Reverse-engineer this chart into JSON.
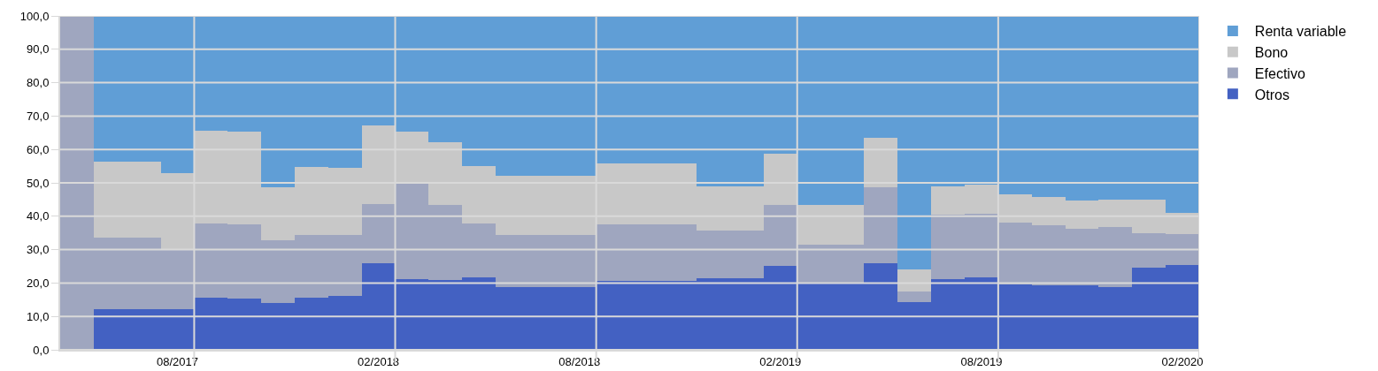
{
  "chart_data": {
    "type": "bar",
    "stacked": true,
    "categories": [
      null,
      null,
      null,
      "08/2017",
      null,
      null,
      null,
      null,
      null,
      "02/2018",
      null,
      null,
      null,
      null,
      null,
      "08/2018",
      null,
      null,
      null,
      null,
      null,
      "02/2019",
      null,
      null,
      null,
      null,
      null,
      "08/2019",
      null,
      null,
      null,
      null,
      null,
      "02/2020"
    ],
    "series": [
      {
        "name": "Otros",
        "color": "#4361c2",
        "values": [
          0,
          12.1,
          12.1,
          12.2,
          15.6,
          15.3,
          14.0,
          15.6,
          16.1,
          25.9,
          21.1,
          20.9,
          21.7,
          18.7,
          18.7,
          18.7,
          20.7,
          20.7,
          20.7,
          21.4,
          21.4,
          25.2,
          19.8,
          19.8,
          26.0,
          14.2,
          21.2,
          21.6,
          19.6,
          19.3,
          19.2,
          18.9,
          24.6,
          25.4
        ]
      },
      {
        "name": "Efectivo",
        "color": "#9fa6bf",
        "values": [
          100,
          21.5,
          21.5,
          18.0,
          22.3,
          22.2,
          18.9,
          18.9,
          18.4,
          17.8,
          28.6,
          22.5,
          16.0,
          15.8,
          15.8,
          15.8,
          16.8,
          16.8,
          16.8,
          14.3,
          14.3,
          18.3,
          11.7,
          11.7,
          22.8,
          3.2,
          19.2,
          19.1,
          18.4,
          18.0,
          17.0,
          17.9,
          10.4,
          9.2
        ]
      },
      {
        "name": "Bono",
        "color": "#c8c8c8",
        "values": [
          0,
          22.8,
          22.8,
          22.8,
          27.8,
          27.9,
          15.9,
          20.2,
          20.0,
          23.5,
          15.7,
          18.7,
          17.2,
          17.7,
          17.7,
          17.7,
          18.3,
          18.3,
          18.3,
          13.3,
          13.3,
          15.2,
          11.9,
          11.9,
          14.7,
          6.6,
          8.5,
          8.8,
          8.5,
          8.6,
          8.6,
          8.3,
          9.9,
          6.5
        ]
      },
      {
        "name": "Renta variable",
        "color": "#609ed6",
        "values": [
          0,
          43.6,
          43.6,
          47.0,
          34.3,
          34.6,
          51.2,
          45.3,
          45.5,
          32.8,
          34.6,
          37.9,
          45.1,
          47.8,
          47.8,
          47.8,
          44.2,
          44.2,
          44.2,
          51.0,
          51.0,
          41.3,
          56.6,
          56.6,
          36.5,
          76.0,
          51.1,
          50.5,
          53.5,
          54.1,
          55.2,
          54.9,
          55.1,
          58.9
        ]
      }
    ],
    "ylim": [
      0,
      100
    ],
    "yticks": [
      {
        "value": 0,
        "label": "0,0"
      },
      {
        "value": 10,
        "label": "10,0"
      },
      {
        "value": 20,
        "label": "20,0"
      },
      {
        "value": 30,
        "label": "30,0"
      },
      {
        "value": 40,
        "label": "40,0"
      },
      {
        "value": 50,
        "label": "50,0"
      },
      {
        "value": 60,
        "label": "60,0"
      },
      {
        "value": 70,
        "label": "70,0"
      },
      {
        "value": 80,
        "label": "80,0"
      },
      {
        "value": 90,
        "label": "90,0"
      },
      {
        "value": 100,
        "label": "100,0"
      }
    ],
    "grid": true,
    "legend": "top right"
  }
}
